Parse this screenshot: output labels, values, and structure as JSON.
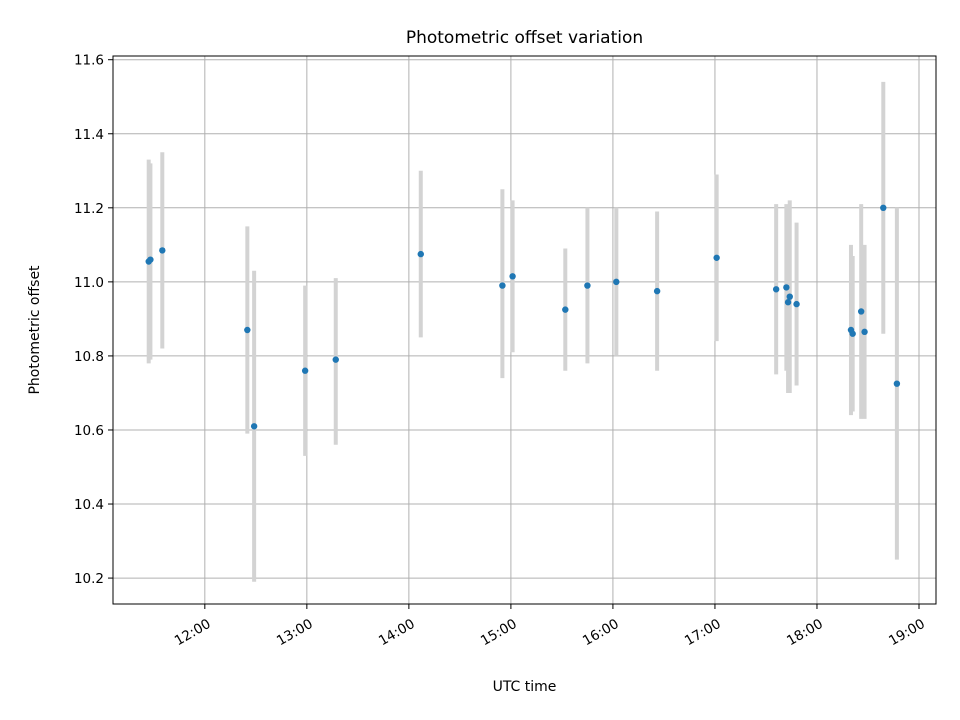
{
  "chart_data": {
    "type": "scatter",
    "title": "Photometric offset variation",
    "xlabel": "UTC time",
    "ylabel": "Photometric offset",
    "xlim": [
      "11:06",
      "19:10"
    ],
    "ylim": [
      10.13,
      11.61
    ],
    "x_ticks": [
      "12:00",
      "13:00",
      "14:00",
      "15:00",
      "16:00",
      "17:00",
      "18:00",
      "19:00"
    ],
    "y_ticks": [
      10.2,
      10.4,
      10.6,
      10.8,
      11.0,
      11.2,
      11.4,
      11.6
    ],
    "grid": true,
    "marker_color": "#1f77b4",
    "errorbar_color": "#d3d3d3",
    "points": [
      {
        "time": "11:27",
        "y": 11.055,
        "yerr_low": 10.78,
        "yerr_high": 11.33
      },
      {
        "time": "11:28",
        "y": 11.06,
        "yerr_low": 10.79,
        "yerr_high": 11.32
      },
      {
        "time": "11:35",
        "y": 11.085,
        "yerr_low": 10.82,
        "yerr_high": 11.35
      },
      {
        "time": "12:25",
        "y": 10.87,
        "yerr_low": 10.59,
        "yerr_high": 11.15
      },
      {
        "time": "12:29",
        "y": 10.61,
        "yerr_low": 10.19,
        "yerr_high": 11.03
      },
      {
        "time": "12:59",
        "y": 10.76,
        "yerr_low": 10.53,
        "yerr_high": 10.99
      },
      {
        "time": "13:17",
        "y": 10.79,
        "yerr_low": 10.56,
        "yerr_high": 11.01
      },
      {
        "time": "14:07",
        "y": 11.075,
        "yerr_low": 10.85,
        "yerr_high": 11.3
      },
      {
        "time": "14:55",
        "y": 10.99,
        "yerr_low": 10.74,
        "yerr_high": 11.25
      },
      {
        "time": "15:01",
        "y": 11.015,
        "yerr_low": 10.81,
        "yerr_high": 11.22
      },
      {
        "time": "15:32",
        "y": 10.925,
        "yerr_low": 10.76,
        "yerr_high": 11.09
      },
      {
        "time": "15:45",
        "y": 10.99,
        "yerr_low": 10.78,
        "yerr_high": 11.2
      },
      {
        "time": "16:02",
        "y": 11.0,
        "yerr_low": 10.8,
        "yerr_high": 11.2
      },
      {
        "time": "16:26",
        "y": 10.975,
        "yerr_low": 10.76,
        "yerr_high": 11.19
      },
      {
        "time": "17:01",
        "y": 11.065,
        "yerr_low": 10.84,
        "yerr_high": 11.29
      },
      {
        "time": "17:36",
        "y": 10.98,
        "yerr_low": 10.75,
        "yerr_high": 11.21
      },
      {
        "time": "17:42",
        "y": 10.985,
        "yerr_low": 10.76,
        "yerr_high": 11.21
      },
      {
        "time": "17:43",
        "y": 10.945,
        "yerr_low": 10.7,
        "yerr_high": 11.19
      },
      {
        "time": "17:44",
        "y": 10.96,
        "yerr_low": 10.7,
        "yerr_high": 11.22
      },
      {
        "time": "17:48",
        "y": 10.94,
        "yerr_low": 10.72,
        "yerr_high": 11.16
      },
      {
        "time": "18:20",
        "y": 10.87,
        "yerr_low": 10.64,
        "yerr_high": 11.1
      },
      {
        "time": "18:21",
        "y": 10.86,
        "yerr_low": 10.65,
        "yerr_high": 11.07
      },
      {
        "time": "18:26",
        "y": 10.92,
        "yerr_low": 10.63,
        "yerr_high": 11.21
      },
      {
        "time": "18:28",
        "y": 10.865,
        "yerr_low": 10.63,
        "yerr_high": 11.1
      },
      {
        "time": "18:39",
        "y": 11.2,
        "yerr_low": 10.86,
        "yerr_high": 11.54
      },
      {
        "time": "18:47",
        "y": 10.725,
        "yerr_low": 10.25,
        "yerr_high": 11.2
      }
    ]
  }
}
